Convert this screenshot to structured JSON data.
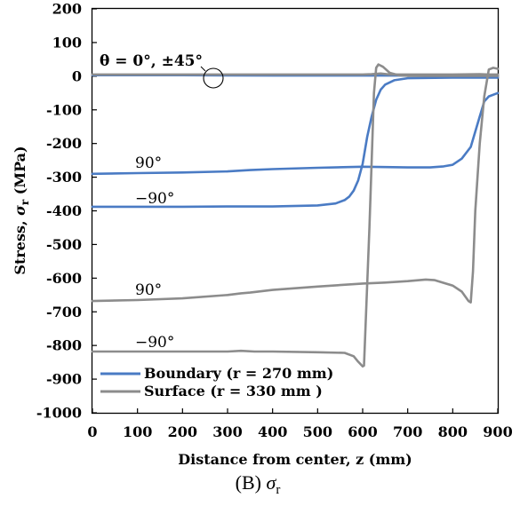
{
  "chart_data": {
    "type": "line",
    "xlabel": "Distance from center, z (mm)",
    "ylabel": "Stress,  σr  (MPa)",
    "ylabel_main": "Stress,  ",
    "ylabel_symbol": "σ",
    "ylabel_sub": "r",
    "ylabel_unit": "  (MPa)",
    "xlim": [
      0,
      900
    ],
    "ylim": [
      -1000,
      200
    ],
    "xticks": [
      "0",
      "100",
      "200",
      "300",
      "400",
      "500",
      "600",
      "700",
      "800",
      "900"
    ],
    "yticks": [
      "200",
      "100",
      "0",
      "-100",
      "-200",
      "-300",
      "-400",
      "-500",
      "-600",
      "-700",
      "-800",
      "-900",
      "-1000"
    ],
    "caption": "(B) σr",
    "caption_prefix": "(B) ",
    "caption_symbol": "σ",
    "caption_sub": "r",
    "colors": {
      "boundary": "#4a7bc4",
      "surface": "#8c8c8c"
    },
    "legend": {
      "placement": "bottom-left",
      "entries": [
        "Boundary (r = 270 mm)",
        "Surface (r = 330 mm )"
      ]
    },
    "annotations": [
      {
        "text": "θ = 0°, ±45°",
        "x": 270,
        "y": 0
      },
      {
        "text": "90°",
        "x": 30,
        "y": -265
      },
      {
        "text": "−90°",
        "x": 30,
        "y": -365
      },
      {
        "text": "90°",
        "x": 30,
        "y": -645
      },
      {
        "text": "−90°",
        "x": 30,
        "y": -795
      }
    ],
    "series": [
      {
        "group": "boundary",
        "label": "θ = 0°, ±45°",
        "x": [
          0,
          200,
          400,
          550,
          600,
          650,
          700,
          800,
          900
        ],
        "y": [
          3,
          3,
          2,
          2,
          2,
          2,
          2,
          1,
          1
        ]
      },
      {
        "group": "surface",
        "label": "θ = 0°, ±45°",
        "x": [
          0,
          200,
          400,
          550,
          600,
          620,
          640,
          660,
          700,
          800,
          860,
          880,
          900
        ],
        "y": [
          5,
          5,
          5,
          5,
          5,
          6,
          8,
          5,
          5,
          5,
          6,
          5,
          5
        ]
      },
      {
        "group": "boundary",
        "label": "90°",
        "x": [
          0,
          100,
          200,
          300,
          350,
          400,
          500,
          600,
          700,
          750,
          780,
          800,
          820,
          840,
          860,
          870,
          880,
          900
        ],
        "y": [
          -290,
          -288,
          -286,
          -283,
          -279,
          -276,
          -272,
          -269,
          -271,
          -271,
          -268,
          -263,
          -245,
          -210,
          -120,
          -75,
          -60,
          -50
        ]
      },
      {
        "group": "boundary",
        "label": "−90°",
        "x": [
          0,
          100,
          200,
          300,
          400,
          500,
          540,
          560,
          570,
          580,
          590,
          600,
          610,
          620,
          630,
          640,
          650,
          670,
          700,
          800,
          900
        ],
        "y": [
          -388,
          -388,
          -388,
          -387,
          -387,
          -384,
          -378,
          -368,
          -358,
          -340,
          -310,
          -260,
          -180,
          -120,
          -70,
          -40,
          -25,
          -12,
          -6,
          -4,
          -4
        ]
      },
      {
        "group": "surface",
        "label": "90°",
        "x": [
          0,
          100,
          200,
          300,
          330,
          350,
          400,
          500,
          600,
          650,
          700,
          740,
          760,
          800,
          820,
          835,
          840,
          845,
          850,
          860,
          870,
          880,
          890,
          900
        ],
        "y": [
          -668,
          -665,
          -660,
          -650,
          -645,
          -643,
          -635,
          -625,
          -616,
          -613,
          -609,
          -604,
          -606,
          -622,
          -640,
          -668,
          -672,
          -580,
          -400,
          -200,
          -60,
          20,
          25,
          22
        ]
      },
      {
        "group": "surface",
        "label": "−90°",
        "x": [
          0,
          100,
          200,
          300,
          330,
          360,
          400,
          500,
          560,
          580,
          590,
          600,
          603,
          615,
          625,
          630,
          635,
          645,
          660,
          680,
          700,
          800,
          900
        ],
        "y": [
          -818,
          -818,
          -818,
          -818,
          -816,
          -818,
          -818,
          -820,
          -822,
          -832,
          -848,
          -862,
          -860,
          -450,
          -50,
          25,
          35,
          28,
          10,
          3,
          1,
          1,
          1
        ]
      }
    ]
  }
}
